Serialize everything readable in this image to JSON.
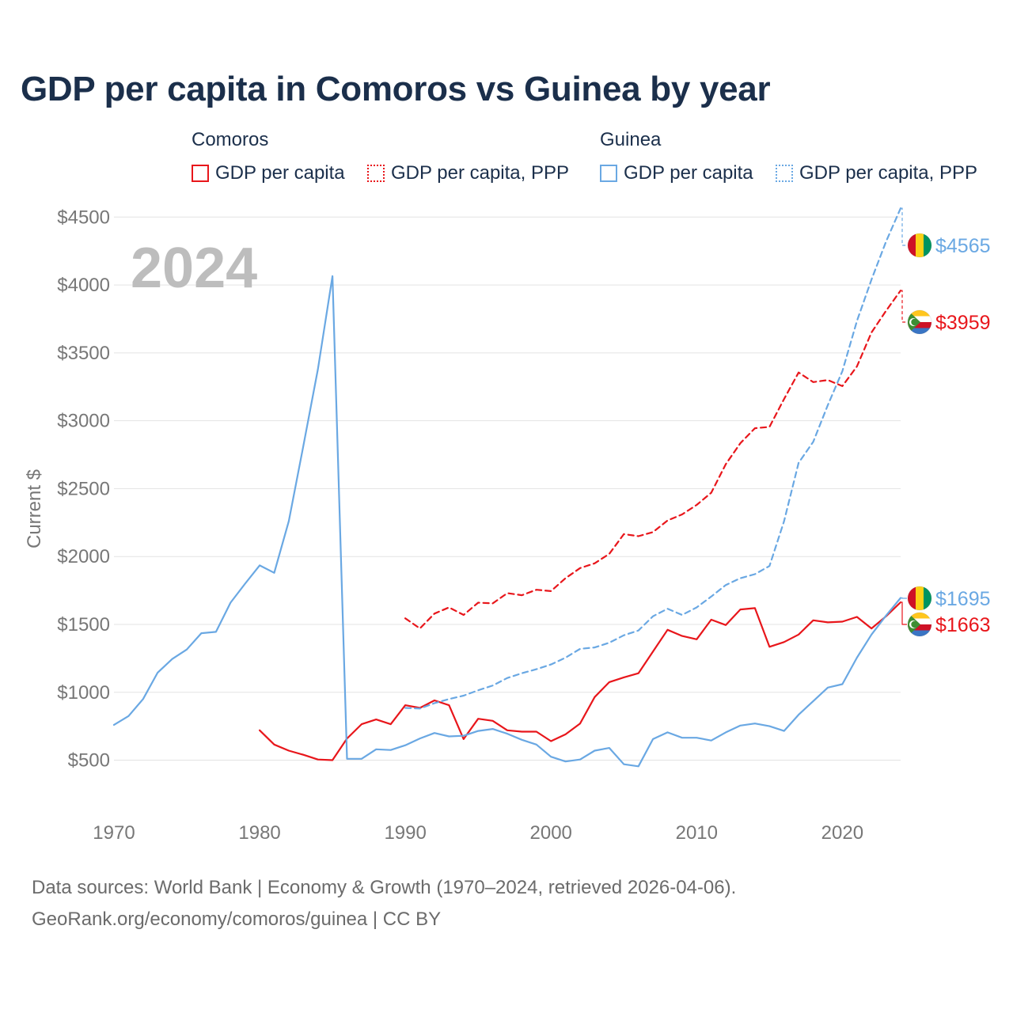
{
  "title": "GDP per capita in Comoros vs Guinea by year",
  "colors": {
    "comoros": "#e8161b",
    "guinea": "#6aa8e3",
    "title": "#1b2f4b",
    "axis_text": "#777777",
    "grid": "#e3e3e3",
    "year_watermark": "#bdbdbd"
  },
  "legend": {
    "groups": [
      {
        "name": "Comoros",
        "items": [
          {
            "label": "GDP per capita",
            "style": "solid"
          },
          {
            "label": "GDP per capita, PPP",
            "style": "dotted"
          }
        ]
      },
      {
        "name": "Guinea",
        "items": [
          {
            "label": "GDP per capita",
            "style": "solid"
          },
          {
            "label": "GDP per capita, PPP",
            "style": "dotted"
          }
        ]
      }
    ]
  },
  "chart_data": {
    "type": "line",
    "year_label": "2024",
    "ylabel": "Current $",
    "xlabel": "",
    "xlim": [
      1970,
      2024
    ],
    "ylim": [
      200,
      4700
    ],
    "x_ticks": [
      1970,
      1980,
      1990,
      2000,
      2010,
      2020
    ],
    "y_ticks": [
      500,
      1000,
      1500,
      2000,
      2500,
      3000,
      3500,
      4000,
      4500
    ],
    "y_tick_labels": [
      "$500",
      "$1000",
      "$1500",
      "$2000",
      "$2500",
      "$3000",
      "$3500",
      "$4000",
      "$4500"
    ],
    "grid": true,
    "series": [
      {
        "name": "Comoros GDP per capita",
        "country": "Comoros",
        "style": "solid",
        "color": "#e8161b",
        "start_year": 1980,
        "values": [
          720,
          615,
          570,
          540,
          505,
          500,
          660,
          765,
          800,
          765,
          905,
          885,
          940,
          905,
          655,
          805,
          790,
          720,
          710,
          710,
          640,
          690,
          770,
          965,
          1075,
          1110,
          1140,
          1300,
          1460,
          1415,
          1390,
          1535,
          1495,
          1610,
          1620,
          1335,
          1370,
          1425,
          1530,
          1515,
          1520,
          1555,
          1470,
          1560,
          1663
        ]
      },
      {
        "name": "Comoros GDP per capita, PPP",
        "country": "Comoros",
        "style": "dashed",
        "color": "#e8161b",
        "start_year": 1990,
        "values": [
          1545,
          1470,
          1580,
          1625,
          1570,
          1660,
          1655,
          1730,
          1715,
          1755,
          1745,
          1840,
          1915,
          1950,
          2020,
          2165,
          2150,
          2180,
          2265,
          2310,
          2380,
          2470,
          2680,
          2835,
          2945,
          2955,
          3160,
          3355,
          3285,
          3300,
          3255,
          3400,
          3650,
          3810,
          3959
        ]
      },
      {
        "name": "Guinea GDP per capita",
        "country": "Guinea",
        "style": "solid",
        "color": "#6aa8e3",
        "start_year": 1970,
        "values": [
          760,
          825,
          950,
          1145,
          1245,
          1315,
          1435,
          1445,
          1660,
          1800,
          1935,
          1880,
          2260,
          2815,
          3380,
          4065,
          510,
          510,
          580,
          575,
          610,
          660,
          700,
          675,
          680,
          715,
          730,
          695,
          650,
          615,
          525,
          490,
          505,
          570,
          590,
          470,
          455,
          655,
          705,
          665,
          665,
          645,
          705,
          755,
          770,
          750,
          715,
          835,
          935,
          1035,
          1060,
          1255,
          1425,
          1565,
          1695
        ]
      },
      {
        "name": "Guinea GDP per capita, PPP",
        "country": "Guinea",
        "style": "dashed",
        "color": "#6aa8e3",
        "start_year": 1990,
        "values": [
          885,
          880,
          920,
          950,
          975,
          1015,
          1050,
          1105,
          1140,
          1170,
          1205,
          1255,
          1320,
          1330,
          1365,
          1420,
          1455,
          1560,
          1615,
          1570,
          1625,
          1705,
          1790,
          1840,
          1870,
          1930,
          2260,
          2690,
          2845,
          3115,
          3365,
          3735,
          4040,
          4320,
          4565
        ]
      }
    ],
    "end_labels": [
      {
        "country": "Guinea",
        "text": "$4565",
        "value": 4565,
        "color": "#6aa8e3"
      },
      {
        "country": "Comoros",
        "text": "$3959",
        "value": 3959,
        "color": "#e8161b"
      },
      {
        "country": "Guinea",
        "text": "$1695",
        "value": 1695,
        "color": "#6aa8e3"
      },
      {
        "country": "Comoros",
        "text": "$1663",
        "value": 1663,
        "color": "#e8161b"
      }
    ]
  },
  "footer": {
    "sources": "Data sources: World Bank | Economy & Growth (1970–2024, retrieved 2026-04-06).",
    "credit": "GeoRank.org/economy/comoros/guinea | CC BY"
  }
}
